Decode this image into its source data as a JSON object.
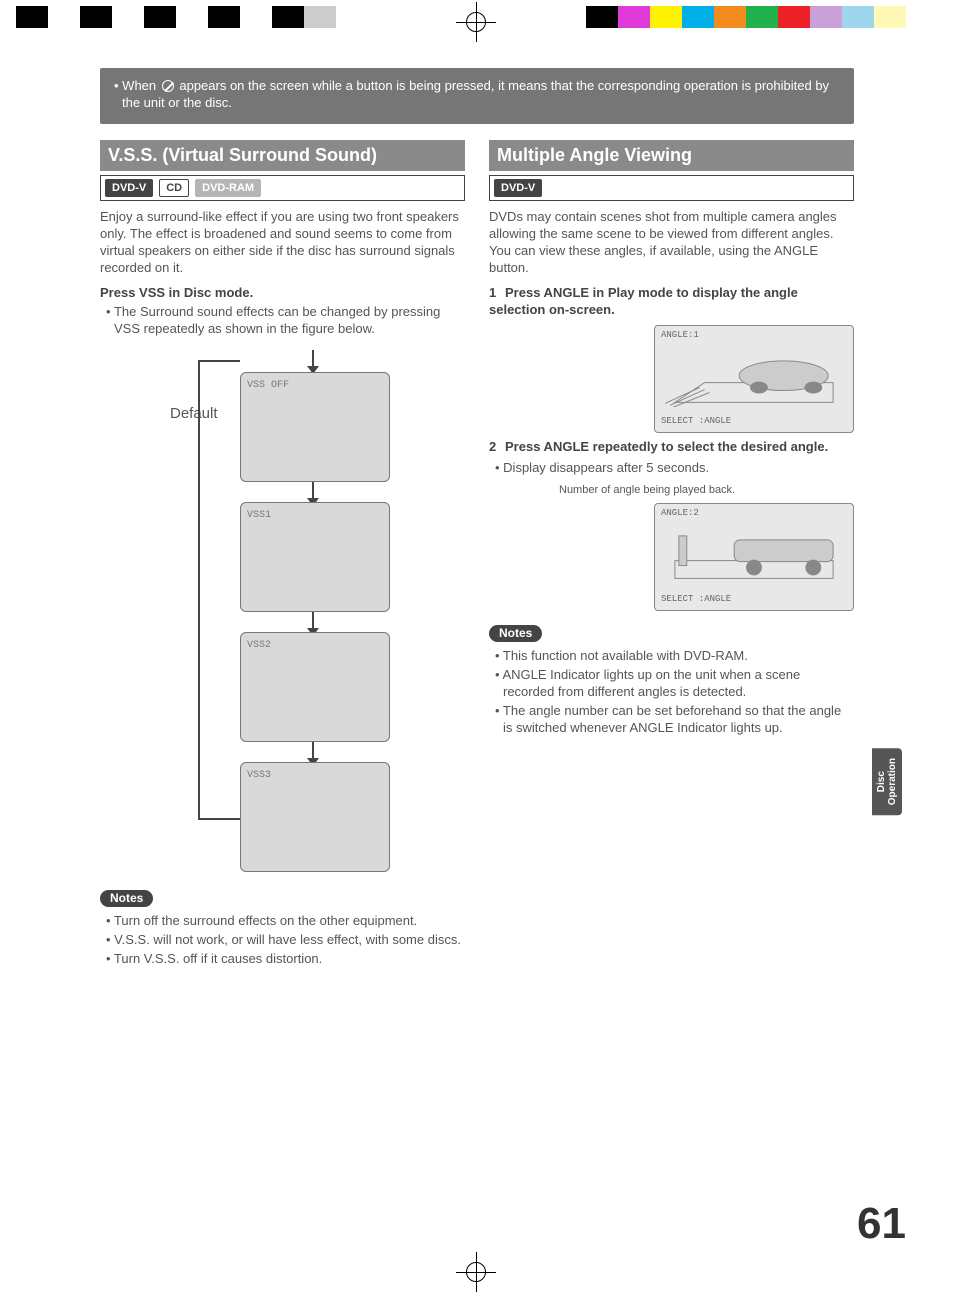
{
  "colorbars": {
    "left": [
      "#000000",
      "#ffffff",
      "#000000",
      "#ffffff",
      "#000000",
      "#ffffff",
      "#000000",
      "#ffffff",
      "#000000",
      "#cccccc",
      "#ffffff"
    ],
    "right": [
      "#000000",
      "#e03bd8",
      "#fef200",
      "#00aee8",
      "#f28c1f",
      "#22b24c",
      "#ec2027",
      "#c9a0d8",
      "#9ed6ef",
      "#fef9b4",
      "#ffffff"
    ]
  },
  "topNote": {
    "prefix": "When ",
    "suffix": " appears on the screen while a button is being pressed, it means that the corresponding operation is prohibited by the unit or the disc."
  },
  "left": {
    "title": "V.S.S. (Virtual Surround Sound)",
    "badges": [
      {
        "text": "DVD-V",
        "style": "dark"
      },
      {
        "text": "CD",
        "style": "outline"
      },
      {
        "text": "DVD-RAM",
        "style": "grey"
      }
    ],
    "intro": "Enjoy a surround-like effect if you are using two front speakers only. The effect is broadened and sound seems to come from virtual speakers on either side if the disc has surround signals recorded on it.",
    "pressLine": "Press VSS in Disc mode.",
    "bullet": "The Surround sound effects can be changed by pressing VSS repeatedly as shown in the figure below.",
    "defaultLabel": "Default",
    "boxes": [
      "VSS OFF",
      "VSS1",
      "VSS2",
      "VSS3"
    ],
    "notesLabel": "Notes",
    "notes": [
      "Turn off the surround effects on the other equipment.",
      "V.S.S. will not work, or will have less effect, with some discs.",
      "Turn V.S.S. off if it causes distortion."
    ]
  },
  "right": {
    "title": "Multiple Angle Viewing",
    "badges": [
      {
        "text": "DVD-V",
        "style": "dark"
      }
    ],
    "intro": "DVDs may contain scenes shot from multiple camera angles allowing the same scene to be viewed from different angles. You can view these angles, if available, using the ANGLE button.",
    "step1": "Press ANGLE in Play mode to display the angle selection on-screen.",
    "tv1": {
      "top": "ANGLE:1",
      "bottom": "SELECT :ANGLE"
    },
    "step2": "Press ANGLE repeatedly to select the desired angle.",
    "step2bullet": "Display disappears after 5 seconds.",
    "caption": "Number of angle being played back.",
    "tv2": {
      "top": "ANGLE:2",
      "bottom": "SELECT :ANGLE"
    },
    "notesLabel": "Notes",
    "notes": [
      "This function not available with DVD-RAM.",
      "ANGLE Indicator lights up on the unit when a scene recorded from different angles is detected.",
      "The angle number can be set beforehand so that the angle is switched whenever ANGLE Indicator lights up."
    ]
  },
  "sideTab": {
    "l1": "Disc",
    "l2": "Operation"
  },
  "pageNum": "61"
}
